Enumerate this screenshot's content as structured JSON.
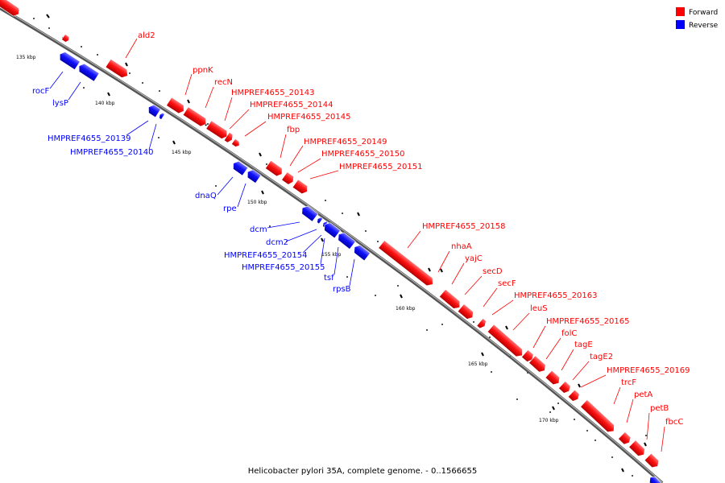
{
  "caption": "Helicobacter pylori 35A, complete genome. - 0..1566655",
  "legend": [
    {
      "label": "Forward",
      "color": "#ff0000"
    },
    {
      "label": "Reverse",
      "color": "#0000ff"
    }
  ],
  "ticks": [
    "135 kbp",
    "140 kbp",
    "145 kbp",
    "150 kbp",
    "155 kbp",
    "160 kbp",
    "165 kbp",
    "170 kbp"
  ],
  "labels": {
    "ald2": "ald2",
    "rocF": "rocF",
    "lysP": "lysP",
    "ppnK": "ppnK",
    "recN": "recN",
    "g20143": "HMPREF4655_20143",
    "g20144": "HMPREF4655_20144",
    "g20145": "HMPREF4655_20145",
    "g20139": "HMPREF4655_20139",
    "g20140": "HMPREF4655_20140",
    "fbp": "fbp",
    "g20149": "HMPREF4655_20149",
    "g20150": "HMPREF4655_20150",
    "g20151": "HMPREF4655_20151",
    "dnaQ": "dnaQ",
    "rpe": "rpe",
    "dcm": "dcm",
    "dcm2": "dcm2",
    "g20154": "HMPREF4655_20154",
    "g20155": "HMPREF4655_20155",
    "tsf": "tsf",
    "rpsB": "rpsB",
    "g20158": "HMPREF4655_20158",
    "nhaA": "nhaA",
    "yajC": "yajC",
    "secD": "secD",
    "secF": "secF",
    "g20163": "HMPREF4655_20163",
    "leuS": "leuS",
    "g20165": "HMPREF4655_20165",
    "folC": "folC",
    "tagE": "tagE",
    "tagE2": "tagE2",
    "g20169": "HMPREF4655_20169",
    "trcF": "trcF",
    "petA": "petA",
    "petB": "petB",
    "fbcC": "fbcC"
  }
}
